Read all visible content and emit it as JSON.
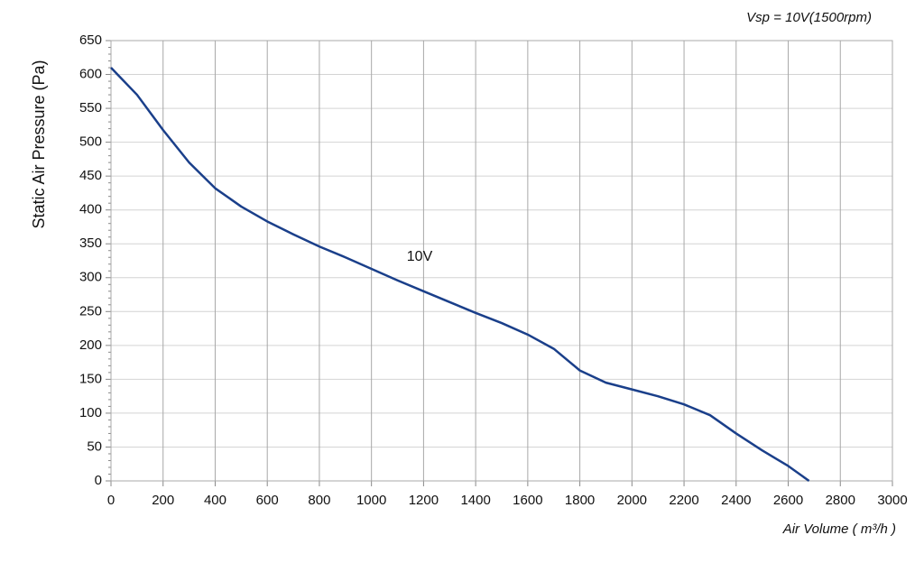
{
  "chart_data": {
    "type": "line",
    "subtitle": "Vsp = 10V(1500rpm)",
    "x_label": "Air Volume ( m³/h )",
    "y_label": "Static Air Pressure  (Pa)",
    "xlim": [
      0,
      3000
    ],
    "xticks": [
      0,
      200,
      400,
      600,
      800,
      1000,
      1200,
      1400,
      1600,
      1800,
      2000,
      2200,
      2400,
      2600,
      2800,
      3000
    ],
    "ylim": [
      0,
      650
    ],
    "yticks": [
      0,
      50,
      100,
      150,
      200,
      250,
      300,
      350,
      400,
      450,
      500,
      550,
      600,
      650
    ],
    "grid": true,
    "x": [
      0,
      100,
      200,
      300,
      400,
      500,
      600,
      700,
      800,
      900,
      1000,
      1100,
      1200,
      1300,
      1400,
      1500,
      1600,
      1700,
      1800,
      1900,
      2000,
      2100,
      2200,
      2300,
      2400,
      2500,
      2600,
      2680
    ],
    "series": [
      {
        "name": "10V",
        "color": "#1a3f8a",
        "values": [
          610,
          570,
          518,
          470,
          432,
          405,
          383,
          364,
          346,
          330,
          313,
          296,
          280,
          264,
          248,
          233,
          216,
          195,
          163,
          145,
          135,
          125,
          113,
          97,
          70,
          45,
          22,
          0
        ]
      }
    ]
  }
}
